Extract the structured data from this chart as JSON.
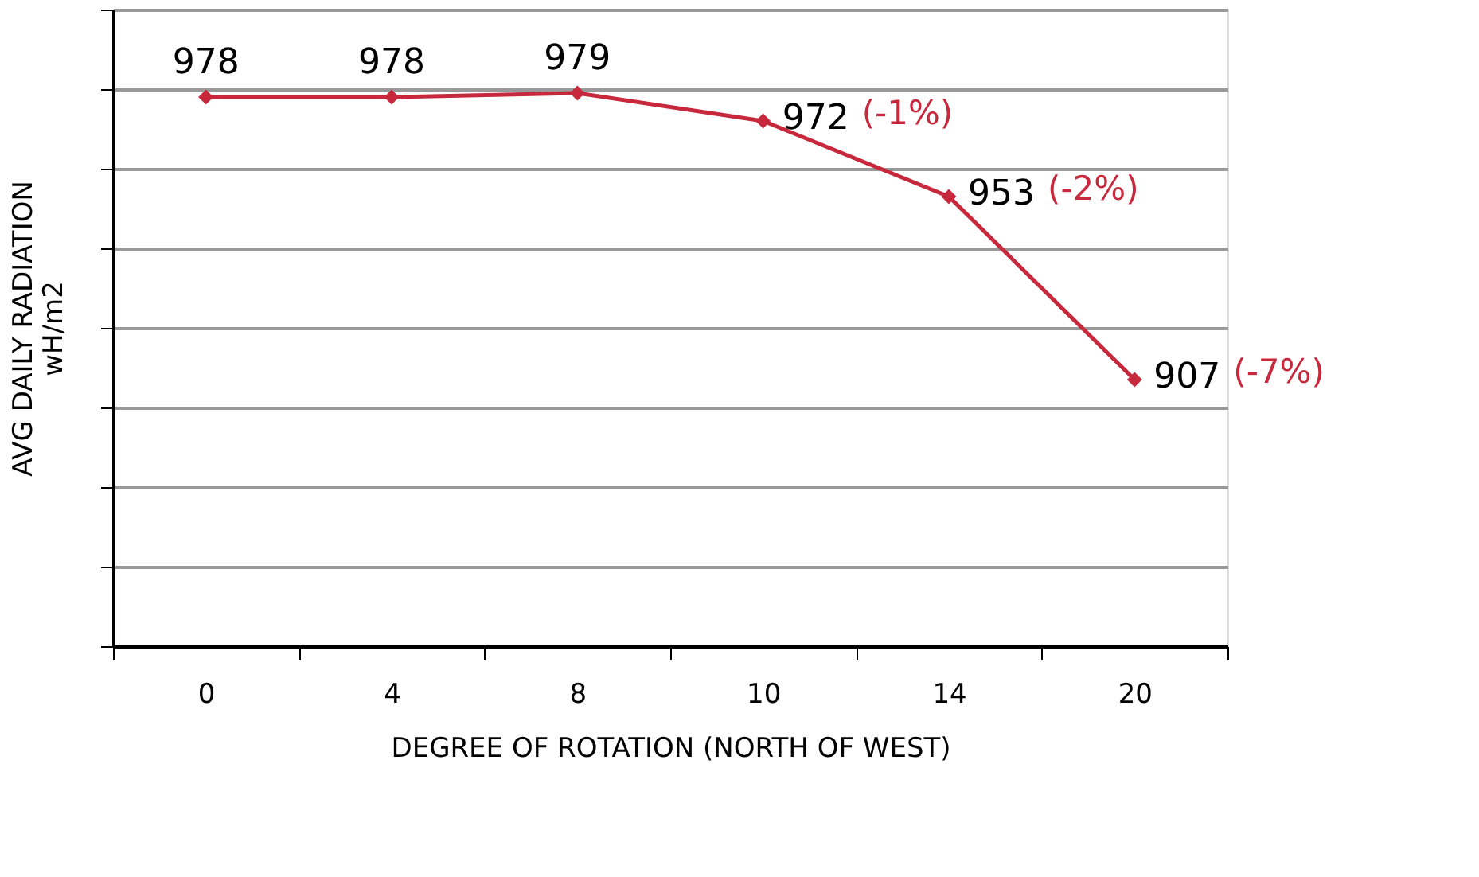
{
  "chart_data": {
    "type": "line",
    "xlabel": "DEGREE OF ROTATION  (NORTH  OF WEST)",
    "ylabel": "AVG DAILY RADIATION\nwH/m2",
    "categories": [
      "0",
      "4",
      "8",
      "10",
      "14",
      "20"
    ],
    "series": [
      {
        "color": "#c8283c",
        "values": [
          978,
          978,
          979,
          972,
          953,
          907
        ]
      }
    ],
    "data_labels": true,
    "marker": "diamond",
    "grid": "y",
    "tick_labels": "x",
    "ylim": [
      840,
      1000
    ],
    "yticks": [
      {
        "value": 840,
        "label": null
      },
      {
        "value": 860,
        "label": null
      },
      {
        "value": 880,
        "label": null
      },
      {
        "value": 900,
        "label": null
      },
      {
        "value": 920,
        "label": null
      },
      {
        "value": 940,
        "label": null
      },
      {
        "value": 960,
        "label": null
      },
      {
        "value": 980,
        "label": null
      },
      {
        "value": 1000,
        "label": null
      }
    ],
    "annotations": [
      {
        "text": "(-1%)",
        "x": "10",
        "y": 972
      },
      {
        "text": "(-2%)",
        "x": "14",
        "y": 953
      },
      {
        "text": "(-7%)",
        "x": "20",
        "y": 907
      }
    ]
  }
}
